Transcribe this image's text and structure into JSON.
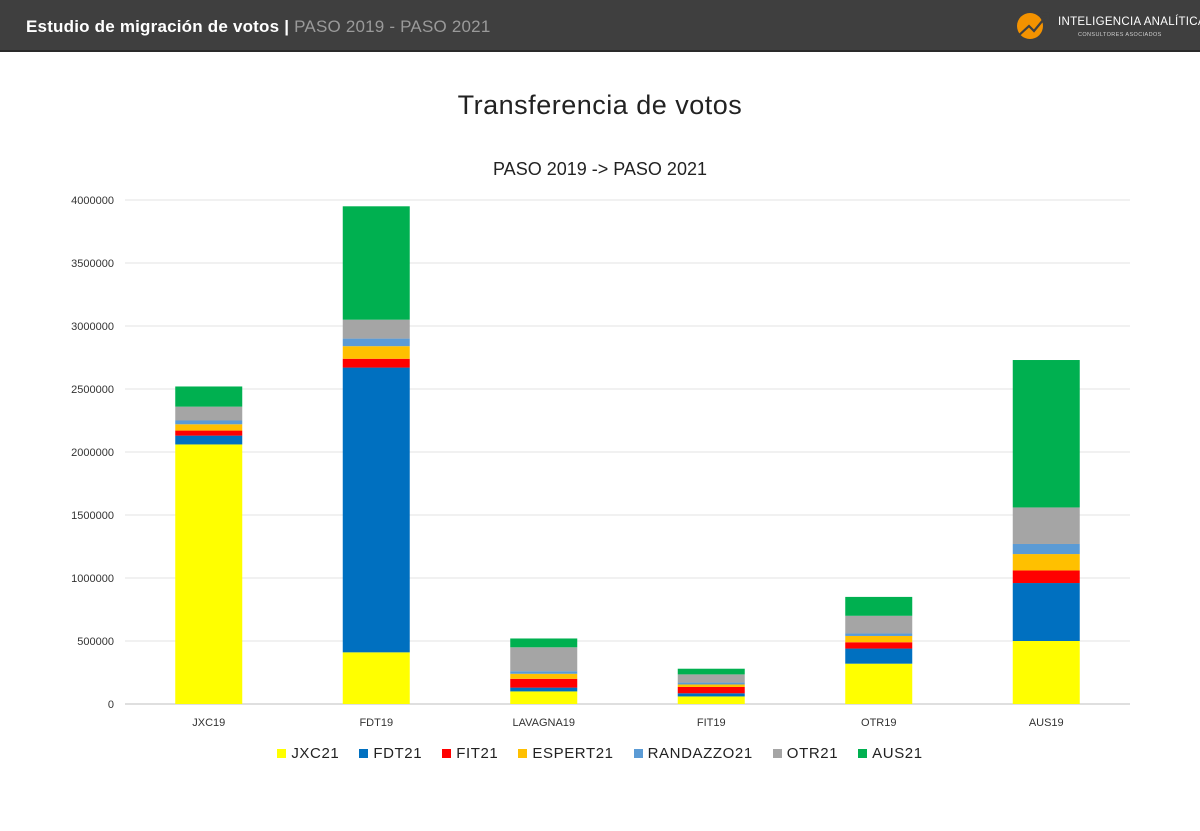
{
  "header": {
    "title": "Estudio de migración de votos",
    "separator": "|",
    "subtitle": "PASO 2019 - PASO 2021",
    "logo_name": "INTELIGENCIA ANALÍTICA",
    "logo_tagline": "CONSULTORES ASOCIADOS"
  },
  "page_title": "Transferencia de votos",
  "chart_data": {
    "type": "bar",
    "stacked": true,
    "title": "PASO 2019 -> PASO 2021",
    "xlabel": "",
    "ylabel": "",
    "ylim": [
      0,
      4000000
    ],
    "yticks": [
      0,
      500000,
      1000000,
      1500000,
      2000000,
      2500000,
      3000000,
      3500000,
      4000000
    ],
    "grid": true,
    "legend_position": "bottom",
    "categories": [
      "JXC19",
      "FDT19",
      "LAVAGNA19",
      "FIT19",
      "OTR19",
      "AUS19"
    ],
    "series": [
      {
        "name": "JXC21",
        "color": "#ffff00",
        "values": [
          2060000,
          410000,
          100000,
          60000,
          320000,
          500000
        ]
      },
      {
        "name": "FDT21",
        "color": "#0070c0",
        "values": [
          70000,
          2260000,
          30000,
          25000,
          120000,
          460000
        ]
      },
      {
        "name": "FIT21",
        "color": "#ff0000",
        "values": [
          40000,
          70000,
          70000,
          50000,
          50000,
          100000
        ]
      },
      {
        "name": "ESPERT21",
        "color": "#ffc000",
        "values": [
          50000,
          100000,
          40000,
          20000,
          50000,
          130000
        ]
      },
      {
        "name": "RANDAZZO21",
        "color": "#5b9bd5",
        "values": [
          30000,
          60000,
          20000,
          15000,
          20000,
          80000
        ]
      },
      {
        "name": "OTR21",
        "color": "#a5a5a5",
        "values": [
          110000,
          150000,
          190000,
          65000,
          140000,
          290000
        ]
      },
      {
        "name": "AUS21",
        "color": "#00b050",
        "values": [
          160000,
          900000,
          70000,
          45000,
          150000,
          1170000
        ]
      }
    ]
  }
}
